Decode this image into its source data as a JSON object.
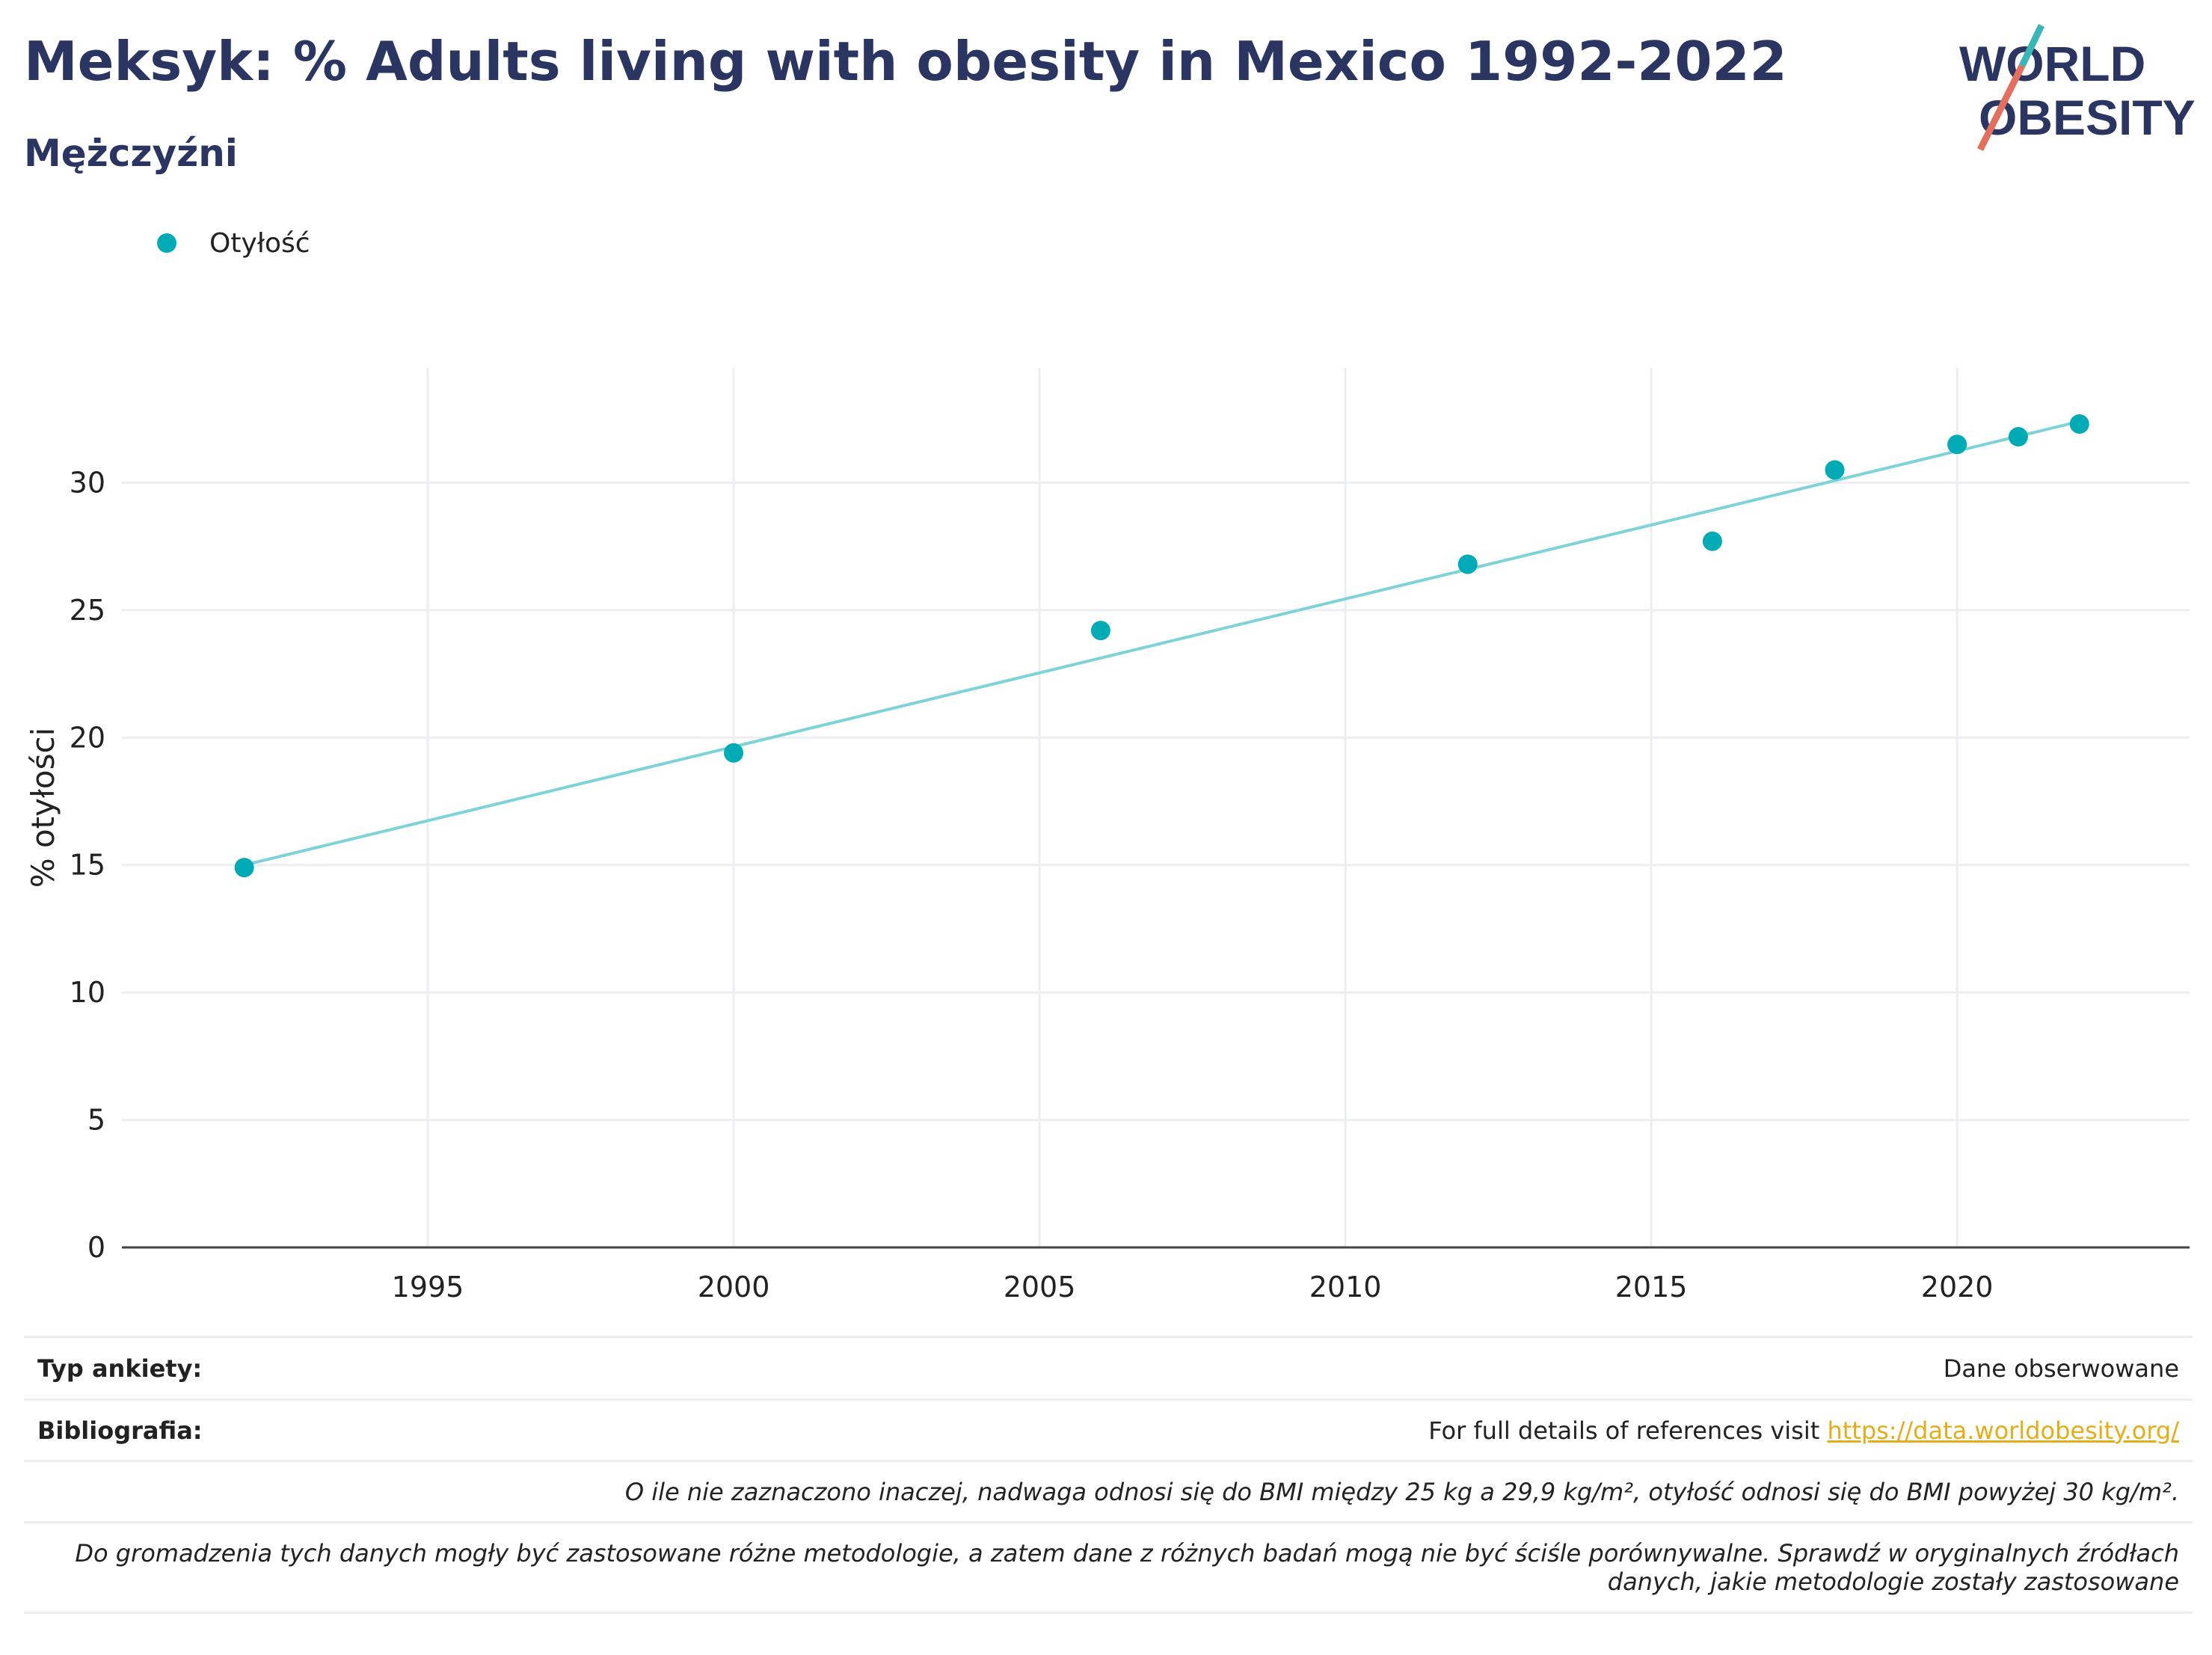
{
  "header": {
    "title": "Meksyk: % Adults living with obesity in Mexico 1992-2022",
    "subtitle": "Mężczyźni"
  },
  "logo": {
    "line1": "WORLD",
    "line2": "OBESITY",
    "text_color": "#2b3561",
    "slash_colors": [
      "#3ab5b8",
      "#e3705f"
    ]
  },
  "legend": {
    "label": "Otyłość",
    "color": "#00abb5"
  },
  "chart_data": {
    "type": "scatter",
    "series": [
      {
        "name": "Otyłość",
        "color": "#00abb5",
        "x": [
          1992,
          2000,
          2006,
          2012,
          2016,
          2018,
          2020,
          2021,
          2022
        ],
        "y": [
          14.9,
          19.4,
          24.2,
          26.8,
          27.7,
          30.5,
          31.5,
          31.8,
          32.3
        ]
      }
    ],
    "trendline": {
      "color": "#7dd3d8",
      "x": [
        1992,
        2022
      ],
      "y": [
        15.0,
        32.4
      ]
    },
    "xlim": [
      1990,
      2023.8
    ],
    "ylim": [
      0,
      34.5
    ],
    "xticks": [
      1995,
      2000,
      2005,
      2010,
      2015,
      2020
    ],
    "yticks": [
      0,
      5,
      10,
      15,
      20,
      25,
      30
    ],
    "ylabel": "% otyłości",
    "xlabel": "",
    "grid": true
  },
  "footer": {
    "survey_type_label": "Typ ankiety:",
    "survey_type_value": "Dane obserwowane",
    "bibliography_label": "Bibliografia:",
    "bibliography_text": "For full details of references visit ",
    "bibliography_link": "https://data.worldobesity.org/",
    "note_bmi": "O ile nie zaznaczono inaczej, nadwaga odnosi się do BMI między 25 kg a 29,9 kg/m², otyłość odnosi się do BMI powyżej 30 kg/m².",
    "note_methodology_1": "Do gromadzenia tych danych mogły być zastosowane różne metodologie, a zatem dane z różnych badań mogą nie być ściśle porównywalne. Sprawdź w oryginalnych źródłach",
    "note_methodology_2": "danych, jakie metodologie zostały zastosowane"
  }
}
